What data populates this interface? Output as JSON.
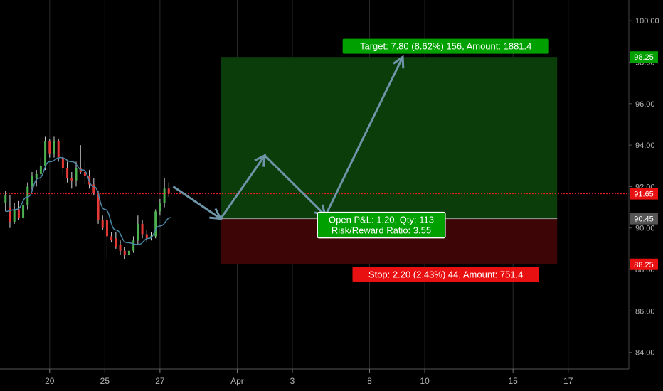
{
  "chart_data": {
    "type": "candlestick",
    "ylim": [
      83.2,
      101.0
    ],
    "y_ticks": [
      "100.00",
      "98.00",
      "96.00",
      "94.00",
      "92.00",
      "90.00",
      "88.00",
      "86.00",
      "84.00"
    ],
    "y_tick_values": [
      100,
      98,
      96,
      94,
      92,
      90,
      88,
      86,
      84
    ],
    "x_ticks": [
      "20",
      "25",
      "27",
      "Apr",
      "3",
      "8",
      "10",
      "15",
      "17"
    ],
    "x_tick_slots": [
      4,
      9,
      14,
      21,
      26,
      33,
      38,
      46,
      51
    ],
    "x_range_slots": [
      -0.5,
      56.5
    ],
    "candles": [
      {
        "slot": 0.0,
        "o": 91.2,
        "h": 91.8,
        "l": 90.8,
        "c": 91.6
      },
      {
        "slot": 0.4,
        "o": 91.0,
        "h": 91.6,
        "l": 90.0,
        "c": 90.3
      },
      {
        "slot": 0.8,
        "o": 90.3,
        "h": 91.2,
        "l": 90.2,
        "c": 90.9
      },
      {
        "slot": 1.2,
        "o": 90.9,
        "h": 91.3,
        "l": 90.4,
        "c": 90.5
      },
      {
        "slot": 1.6,
        "o": 90.5,
        "h": 91.3,
        "l": 90.4,
        "c": 91.1
      },
      {
        "slot": 2.0,
        "o": 91.1,
        "h": 92.2,
        "l": 90.9,
        "c": 92.0
      },
      {
        "slot": 2.4,
        "o": 92.0,
        "h": 92.7,
        "l": 91.8,
        "c": 92.5
      },
      {
        "slot": 2.8,
        "o": 92.4,
        "h": 92.8,
        "l": 92.0,
        "c": 92.6
      },
      {
        "slot": 3.2,
        "o": 92.6,
        "h": 93.4,
        "l": 92.3,
        "c": 93.0
      },
      {
        "slot": 3.6,
        "o": 93.0,
        "h": 94.4,
        "l": 92.8,
        "c": 94.2
      },
      {
        "slot": 4.0,
        "o": 94.2,
        "h": 94.3,
        "l": 93.4,
        "c": 93.6
      },
      {
        "slot": 4.4,
        "o": 93.6,
        "h": 94.4,
        "l": 93.4,
        "c": 94.2
      },
      {
        "slot": 4.8,
        "o": 94.2,
        "h": 94.3,
        "l": 93.2,
        "c": 93.4
      },
      {
        "slot": 5.2,
        "o": 93.4,
        "h": 93.6,
        "l": 92.6,
        "c": 92.9
      },
      {
        "slot": 5.6,
        "o": 92.9,
        "h": 93.2,
        "l": 92.2,
        "c": 92.4
      },
      {
        "slot": 6.0,
        "o": 92.4,
        "h": 92.7,
        "l": 91.9,
        "c": 92.3
      },
      {
        "slot": 6.4,
        "o": 92.3,
        "h": 93.2,
        "l": 92.0,
        "c": 92.9
      },
      {
        "slot": 6.8,
        "o": 92.9,
        "h": 94.0,
        "l": 92.6,
        "c": 92.7
      },
      {
        "slot": 7.2,
        "o": 92.7,
        "h": 93.2,
        "l": 92.1,
        "c": 92.5
      },
      {
        "slot": 7.6,
        "o": 92.5,
        "h": 92.8,
        "l": 91.9,
        "c": 92.1
      },
      {
        "slot": 8.0,
        "o": 92.1,
        "h": 92.4,
        "l": 91.6,
        "c": 91.7
      },
      {
        "slot": 8.4,
        "o": 91.7,
        "h": 91.8,
        "l": 90.2,
        "c": 90.4
      },
      {
        "slot": 8.8,
        "o": 90.4,
        "h": 90.6,
        "l": 89.9,
        "c": 90.0
      },
      {
        "slot": 9.2,
        "o": 90.4,
        "h": 90.6,
        "l": 88.5,
        "c": 89.6
      },
      {
        "slot": 9.6,
        "o": 89.6,
        "h": 89.8,
        "l": 89.3,
        "c": 89.4
      },
      {
        "slot": 10.0,
        "o": 89.5,
        "h": 89.8,
        "l": 89.0,
        "c": 89.1
      },
      {
        "slot": 10.4,
        "o": 89.2,
        "h": 89.4,
        "l": 88.7,
        "c": 88.9
      },
      {
        "slot": 10.8,
        "o": 88.9,
        "h": 89.1,
        "l": 88.5,
        "c": 88.7
      },
      {
        "slot": 11.2,
        "o": 88.7,
        "h": 89.0,
        "l": 88.6,
        "c": 88.9
      },
      {
        "slot": 11.6,
        "o": 88.9,
        "h": 89.6,
        "l": 88.8,
        "c": 89.4
      },
      {
        "slot": 12.0,
        "o": 89.4,
        "h": 90.6,
        "l": 89.2,
        "c": 90.2
      },
      {
        "slot": 12.4,
        "o": 90.2,
        "h": 90.4,
        "l": 89.5,
        "c": 89.7
      },
      {
        "slot": 12.8,
        "o": 89.7,
        "h": 89.9,
        "l": 89.3,
        "c": 89.5
      },
      {
        "slot": 13.2,
        "o": 89.5,
        "h": 89.8,
        "l": 89.4,
        "c": 89.6
      },
      {
        "slot": 13.6,
        "o": 89.6,
        "h": 90.9,
        "l": 89.5,
        "c": 90.8
      },
      {
        "slot": 14.0,
        "o": 90.8,
        "h": 91.4,
        "l": 90.6,
        "c": 91.2
      },
      {
        "slot": 14.4,
        "o": 91.2,
        "h": 92.4,
        "l": 91.0,
        "c": 91.9
      },
      {
        "slot": 14.8,
        "o": 91.9,
        "h": 92.2,
        "l": 91.5,
        "c": 91.65
      }
    ],
    "moving_average": [
      {
        "slot": 0.0,
        "v": 90.8
      },
      {
        "slot": 1.0,
        "v": 90.9
      },
      {
        "slot": 2.0,
        "v": 91.5
      },
      {
        "slot": 3.0,
        "v": 92.4
      },
      {
        "slot": 4.0,
        "v": 93.2
      },
      {
        "slot": 5.0,
        "v": 93.4
      },
      {
        "slot": 6.0,
        "v": 93.2
      },
      {
        "slot": 7.0,
        "v": 92.8
      },
      {
        "slot": 8.0,
        "v": 92.0
      },
      {
        "slot": 9.0,
        "v": 90.9
      },
      {
        "slot": 10.0,
        "v": 89.9
      },
      {
        "slot": 11.0,
        "v": 89.3
      },
      {
        "slot": 12.0,
        "v": 89.2
      },
      {
        "slot": 13.0,
        "v": 89.5
      },
      {
        "slot": 14.0,
        "v": 90.1
      },
      {
        "slot": 15.0,
        "v": 90.5
      }
    ],
    "current_price": {
      "value": 91.65,
      "label": "91.65"
    },
    "position": {
      "entry": {
        "value": 90.45,
        "label": "90.45"
      },
      "target": {
        "value": 98.25,
        "label": "98.25"
      },
      "stop": {
        "value": 88.25,
        "label": "88.25"
      },
      "slot_range": [
        19.5,
        50.0
      ],
      "target_text": "Target: 7.80 (8.62%) 156, Amount: 1881.4",
      "stop_text": "Stop: 2.20 (2.43%) 44, Amount: 751.4",
      "pnl_line1": "Open P&L: 1.20, Qty: 113",
      "pnl_line2": "Risk/Reward Ratio: 3.55"
    },
    "projection_path": [
      {
        "slot": 15.2,
        "v": 92.0
      },
      {
        "slot": 19.5,
        "v": 90.45
      },
      {
        "slot": 23.5,
        "v": 93.5
      },
      {
        "slot": 29.0,
        "v": 90.6
      },
      {
        "slot": 36.0,
        "v": 98.25
      }
    ],
    "colors": {
      "background": "#000000",
      "grid": "#2a2a2a",
      "up": "#4caf50",
      "down": "#e53935",
      "ma": "#4a88a8",
      "price_line": "#ff1f1f",
      "target_zone": "#0a3d0a",
      "stop_zone": "#3d0505",
      "target_label": "#00a000",
      "stop_label": "#e81010",
      "entry_label": "#555555",
      "projection": "#6e94a8",
      "axis_text": "#b5b5b5"
    }
  }
}
